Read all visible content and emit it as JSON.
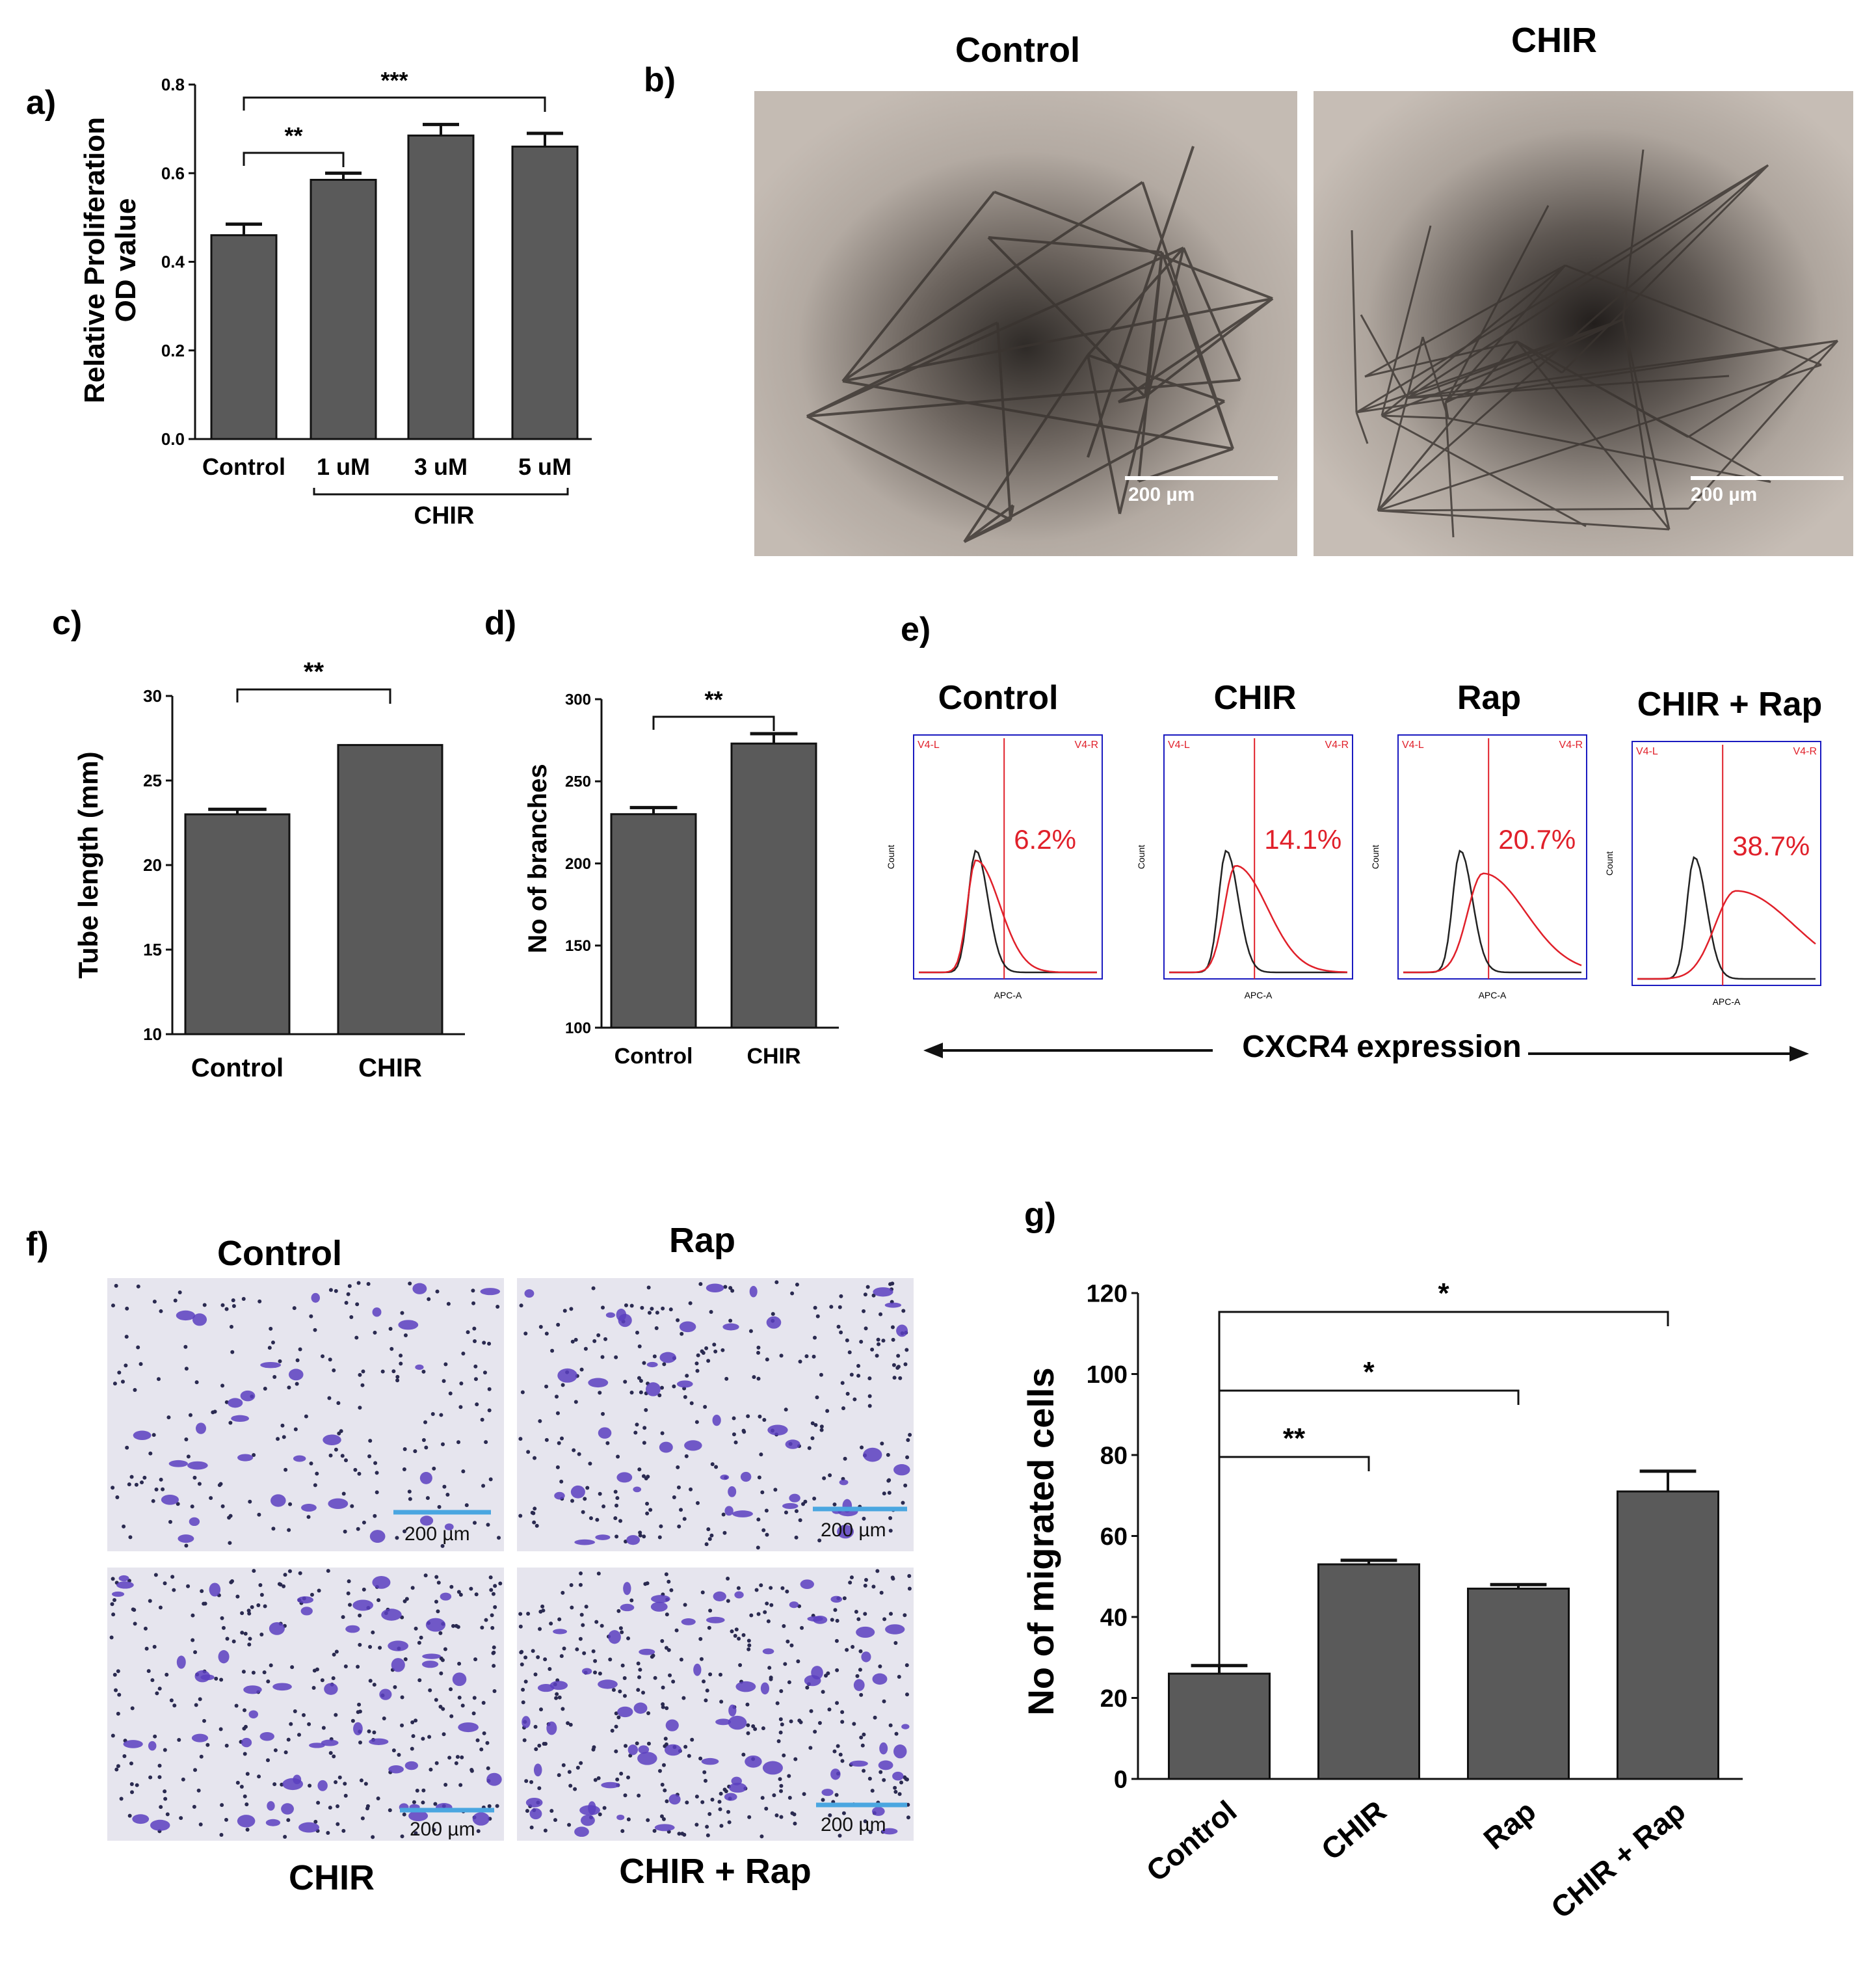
{
  "panels": {
    "a": {
      "letter": "a)"
    },
    "b": {
      "letter": "b)",
      "labels": [
        "Control",
        "CHIR"
      ],
      "scale_bar": "200 µm"
    },
    "c": {
      "letter": "c)"
    },
    "d": {
      "letter": "d)"
    },
    "e": {
      "letter": "e)",
      "shared_xlabel": "CXCR4 expression"
    },
    "f": {
      "letter": "f)",
      "labels": [
        "Control",
        "Rap",
        "CHIR",
        "CHIR + Rap"
      ],
      "scale_bar": "200 µm"
    },
    "g": {
      "letter": "g)"
    }
  },
  "colors": {
    "bar": "#5a5a5a",
    "hist_control": "#222222",
    "hist_treated": "#e0202a",
    "frame": "#1a1ac0",
    "scale_blue": "#4aa6e0"
  },
  "chart_data": [
    {
      "id": "a",
      "type": "bar",
      "ylabel": [
        "Relative Proliferation",
        "OD value"
      ],
      "categories": [
        "Control",
        "1 uM",
        "3 uM",
        "5 uM"
      ],
      "group_label": "CHIR",
      "values": [
        0.46,
        0.585,
        0.685,
        0.66
      ],
      "errors": [
        0.025,
        0.015,
        0.025,
        0.03
      ],
      "ylim": [
        0,
        0.8
      ],
      "yticks": [
        "0.0",
        "0.2",
        "0.4",
        "0.6",
        "0.8"
      ],
      "significance": [
        {
          "from": 0,
          "to": 1,
          "label": "**"
        },
        {
          "from": 0,
          "to": 3,
          "label": "***"
        }
      ]
    },
    {
      "id": "c",
      "type": "bar",
      "ylabel": "Tube length (mm)",
      "categories": [
        "Control",
        "CHIR"
      ],
      "values": [
        23.0,
        27.1
      ],
      "errors": [
        0.3,
        0.0
      ],
      "ylim": [
        10,
        30
      ],
      "yticks": [
        "10",
        "15",
        "20",
        "25",
        "30"
      ],
      "significance": [
        {
          "from": 0,
          "to": 1,
          "label": "**"
        }
      ]
    },
    {
      "id": "d",
      "type": "bar",
      "ylabel": "No of branches",
      "categories": [
        "Control",
        "CHIR"
      ],
      "values": [
        230,
        273
      ],
      "errors": [
        4,
        6
      ],
      "ylim": [
        100,
        300
      ],
      "yticks": [
        "100",
        "150",
        "200",
        "250",
        "300"
      ],
      "significance": [
        {
          "from": 0,
          "to": 1,
          "label": "**"
        }
      ]
    },
    {
      "id": "e",
      "type": "histogram",
      "gate_left": "V4-L",
      "gate_right": "V4-R",
      "xlabel": "APC-A",
      "ylabel": "Count",
      "panels": [
        {
          "title": "Control",
          "percent": "6.2%",
          "shift": 0.0
        },
        {
          "title": "CHIR",
          "percent": "14.1%",
          "shift": 0.05
        },
        {
          "title": "Rap",
          "percent": "20.7%",
          "shift": 0.12
        },
        {
          "title": "CHIR + Rap",
          "percent": "38.7%",
          "shift": 0.22
        }
      ]
    },
    {
      "id": "g",
      "type": "bar",
      "ylabel": "No of migrated cells",
      "categories": [
        "Control",
        "CHIR",
        "Rap",
        "CHIR + Rap"
      ],
      "values": [
        26,
        53,
        47,
        71
      ],
      "errors": [
        2,
        1,
        1,
        5
      ],
      "ylim": [
        0,
        120
      ],
      "yticks": [
        "0",
        "20",
        "40",
        "60",
        "80",
        "100",
        "120"
      ],
      "significance": [
        {
          "from": 0,
          "to": 1,
          "label": "**"
        },
        {
          "from": 0,
          "to": 2,
          "label": "*"
        },
        {
          "from": 0,
          "to": 3,
          "label": "*"
        }
      ]
    }
  ]
}
